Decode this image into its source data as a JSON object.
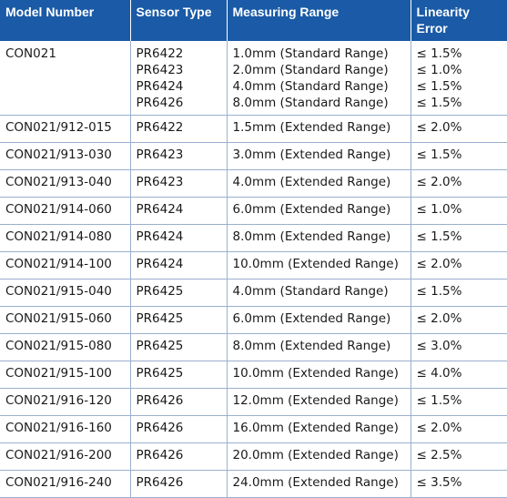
{
  "headers": {
    "model": "Model Number",
    "sensor": "Sensor Type",
    "range": "Measuring Range",
    "linearity_line1": "Linearity",
    "linearity_line2": "Error"
  },
  "first_row": {
    "model": "CON021",
    "sensors": [
      "PR6422",
      "PR6423",
      "PR6424",
      "PR6426"
    ],
    "ranges": [
      "1.0mm (Standard Range)",
      "2.0mm (Standard Range)",
      "4.0mm (Standard Range)",
      "8.0mm (Standard Range)"
    ],
    "errors": [
      "≤ 1.5%",
      "≤ 1.0%",
      "≤ 1.5%",
      "≤ 1.5%"
    ]
  },
  "rows": [
    {
      "model": "CON021/912-015",
      "sensor": "PR6422",
      "range": "1.5mm (Extended Range)",
      "error": "≤ 2.0%"
    },
    {
      "model": "CON021/913-030",
      "sensor": "PR6423",
      "range": "3.0mm (Extended Range)",
      "error": "≤ 1.5%"
    },
    {
      "model": "CON021/913-040",
      "sensor": "PR6423",
      "range": "4.0mm (Extended Range)",
      "error": "≤ 2.0%"
    },
    {
      "model": "CON021/914-060",
      "sensor": "PR6424",
      "range": "6.0mm (Extended Range)",
      "error": "≤ 1.0%"
    },
    {
      "model": "CON021/914-080",
      "sensor": "PR6424",
      "range": "8.0mm (Extended Range)",
      "error": "≤ 1.5%"
    },
    {
      "model": "CON021/914-100",
      "sensor": "PR6424",
      "range": "10.0mm (Extended Range)",
      "error": "≤ 2.0%"
    },
    {
      "model": "CON021/915-040",
      "sensor": "PR6425",
      "range": "4.0mm (Standard Range)",
      "error": "≤ 1.5%"
    },
    {
      "model": "CON021/915-060",
      "sensor": "PR6425",
      "range": "6.0mm (Extended Range)",
      "error": "≤ 2.0%"
    },
    {
      "model": "CON021/915-080",
      "sensor": "PR6425",
      "range": "8.0mm (Extended Range)",
      "error": "≤ 3.0%"
    },
    {
      "model": "CON021/915-100",
      "sensor": "PR6425",
      "range": "10.0mm (Extended Range)",
      "error": "≤ 4.0%"
    },
    {
      "model": "CON021/916-120",
      "sensor": "PR6426",
      "range": "12.0mm (Extended Range)",
      "error": "≤ 1.5%"
    },
    {
      "model": "CON021/916-160",
      "sensor": "PR6426",
      "range": "16.0mm (Extended Range)",
      "error": "≤ 2.0%"
    },
    {
      "model": "CON021/916-200",
      "sensor": "PR6426",
      "range": "20.0mm (Extended Range)",
      "error": "≤ 2.5%"
    },
    {
      "model": "CON021/916-240",
      "sensor": "PR6426",
      "range": "24.0mm (Extended Range)",
      "error": "≤ 3.5%"
    }
  ],
  "colors": {
    "header_bg": "#1a5aa6",
    "header_text": "#ffffff",
    "grid_line": "#9ab0cf"
  }
}
